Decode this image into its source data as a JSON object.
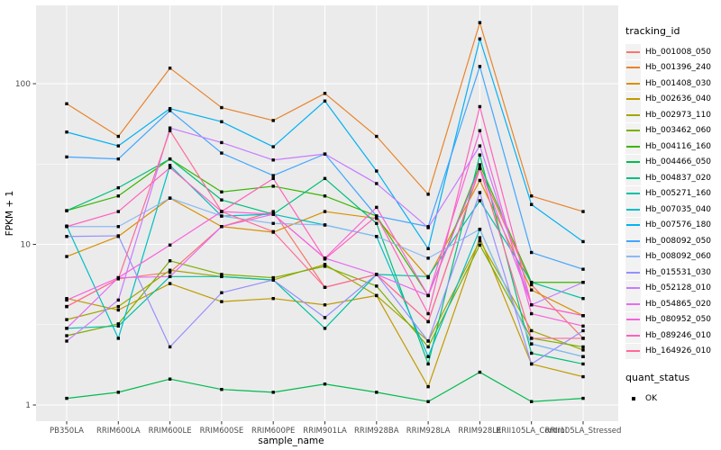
{
  "chart_data": {
    "type": "line",
    "title": "",
    "xlabel": "sample_name",
    "ylabel": "FPKM + 1",
    "y_scale": "log10",
    "y_ticks": [
      "1",
      "10",
      "100"
    ],
    "y_tick_values": [
      1,
      10,
      100
    ],
    "y_minor_log": [
      0.5,
      1.5
    ],
    "ylim": [
      0.79,
      310
    ],
    "grid": true,
    "legend_position": "right",
    "panel_bg": "#EBEBEB",
    "grid_color": "#FFFFFF",
    "key_bg": "#F2F2F2",
    "axis_text_color": "#4D4D4D",
    "marker": "black-square",
    "categories": [
      "PB350LA",
      "RRIM600LA",
      "RRIM600LE",
      "RRIM600SE",
      "RRIM600PE",
      "RRIM901LA",
      "RRIM928BA",
      "RRIM928LA",
      "RRIM928LE",
      "RRII105LA_Control",
      "RRII105LA_Stressed"
    ],
    "legend_title": "tracking_id",
    "series": [
      {
        "name": "Hb_001008_050",
        "color": "#F8766D",
        "values": [
          4.1,
          6.1,
          6.7,
          12.9,
          16,
          5.4,
          6.5,
          3.3,
          29.6,
          5.6,
          2.6
        ]
      },
      {
        "name": "Hb_001396_240",
        "color": "#E8842C",
        "values": [
          75,
          47,
          125,
          71,
          59,
          87,
          47,
          20.5,
          240,
          20,
          16
        ]
      },
      {
        "name": "Hb_001408_030",
        "color": "#D89000",
        "values": [
          8.4,
          11.2,
          19.4,
          12.9,
          11.9,
          16,
          14.5,
          6.2,
          25,
          5.2,
          3.6
        ]
      },
      {
        "name": "Hb_002636_040",
        "color": "#C09B00",
        "values": [
          4.6,
          3.9,
          5.7,
          4.4,
          4.6,
          4.2,
          4.8,
          1.3,
          11,
          1.8,
          1.5
        ]
      },
      {
        "name": "Hb_002973_110",
        "color": "#A3A500",
        "values": [
          3.4,
          4.1,
          6.9,
          6.3,
          6.0,
          7.5,
          4.8,
          2.5,
          10.5,
          2.9,
          2.2
        ]
      },
      {
        "name": "Hb_003462_060",
        "color": "#7CAE00",
        "values": [
          2.7,
          3.2,
          7.9,
          6.5,
          6.2,
          7.3,
          5.5,
          2.3,
          9.9,
          2.6,
          2.3
        ]
      },
      {
        "name": "Hb_004116_160",
        "color": "#39B600",
        "values": [
          16.2,
          20,
          34,
          21.2,
          23,
          20,
          15,
          4.8,
          31.3,
          5.8,
          5.8
        ]
      },
      {
        "name": "Hb_004466_050",
        "color": "#00BB4E",
        "values": [
          1.1,
          1.2,
          1.45,
          1.25,
          1.2,
          1.35,
          1.2,
          1.05,
          1.6,
          1.05,
          1.1
        ]
      },
      {
        "name": "Hb_004837_020",
        "color": "#00BF7D",
        "values": [
          16.2,
          22.5,
          34,
          18.9,
          15.4,
          25.7,
          13.5,
          1.8,
          36,
          2.1,
          1.8
        ]
      },
      {
        "name": "Hb_005271_160",
        "color": "#00C1A3",
        "values": [
          3.0,
          3.1,
          6.3,
          6.3,
          6.0,
          3.0,
          6.5,
          6.3,
          18.7,
          5.8,
          4.6
        ]
      },
      {
        "name": "Hb_007035_040",
        "color": "#00BFC4",
        "values": [
          13,
          2.6,
          31,
          15,
          15.4,
          13.2,
          11.2,
          2.0,
          12.4,
          2.4,
          2.0
        ]
      },
      {
        "name": "Hb_007576_180",
        "color": "#00B2F3",
        "values": [
          50,
          41,
          70,
          58,
          40.5,
          78,
          28.6,
          9.4,
          190,
          17.7,
          10.4
        ]
      },
      {
        "name": "Hb_008092_050",
        "color": "#41A5FF",
        "values": [
          35,
          34,
          68,
          37,
          26.8,
          36.5,
          15,
          12.9,
          128,
          8.9,
          7.0
        ]
      },
      {
        "name": "Hb_008092_060",
        "color": "#8DB9F3",
        "values": [
          12.9,
          12.9,
          19.4,
          15,
          13.5,
          13.2,
          11.2,
          8.2,
          12.4,
          2.4,
          2.0
        ]
      },
      {
        "name": "Hb_015531_030",
        "color": "#9590FF",
        "values": [
          11.2,
          11.3,
          2.3,
          5.0,
          6.0,
          3.5,
          6.5,
          2.5,
          21,
          1.8,
          2.9
        ]
      },
      {
        "name": "Hb_052128_010",
        "color": "#C77CFF",
        "values": [
          2.5,
          4.5,
          53,
          43,
          33.5,
          36.5,
          23.9,
          12.7,
          41,
          4.2,
          5.8
        ]
      },
      {
        "name": "Hb_054865_020",
        "color": "#E76BF3",
        "values": [
          3.0,
          6.2,
          6.3,
          12.9,
          15.4,
          8.2,
          6.5,
          4.8,
          30,
          4.2,
          3.6
        ]
      },
      {
        "name": "Hb_080952_050",
        "color": "#FA62DB",
        "values": [
          4.5,
          6.2,
          9.9,
          16,
          15.4,
          8.2,
          17,
          4.8,
          51,
          3.7,
          3.1
        ]
      },
      {
        "name": "Hb_089246_010",
        "color": "#FF62BC",
        "values": [
          12.9,
          16,
          30,
          16,
          25.7,
          8.1,
          15,
          3.7,
          72,
          4.2,
          3.6
        ]
      },
      {
        "name": "Hb_164926_010",
        "color": "#FF6A98",
        "values": [
          4.1,
          6.1,
          51,
          16,
          12,
          5.4,
          6.5,
          3.3,
          29.6,
          2.6,
          2.6
        ]
      }
    ],
    "legend2_title": "quant_status",
    "legend2_items": [
      {
        "label": "OK",
        "marker": "black-square"
      }
    ]
  }
}
